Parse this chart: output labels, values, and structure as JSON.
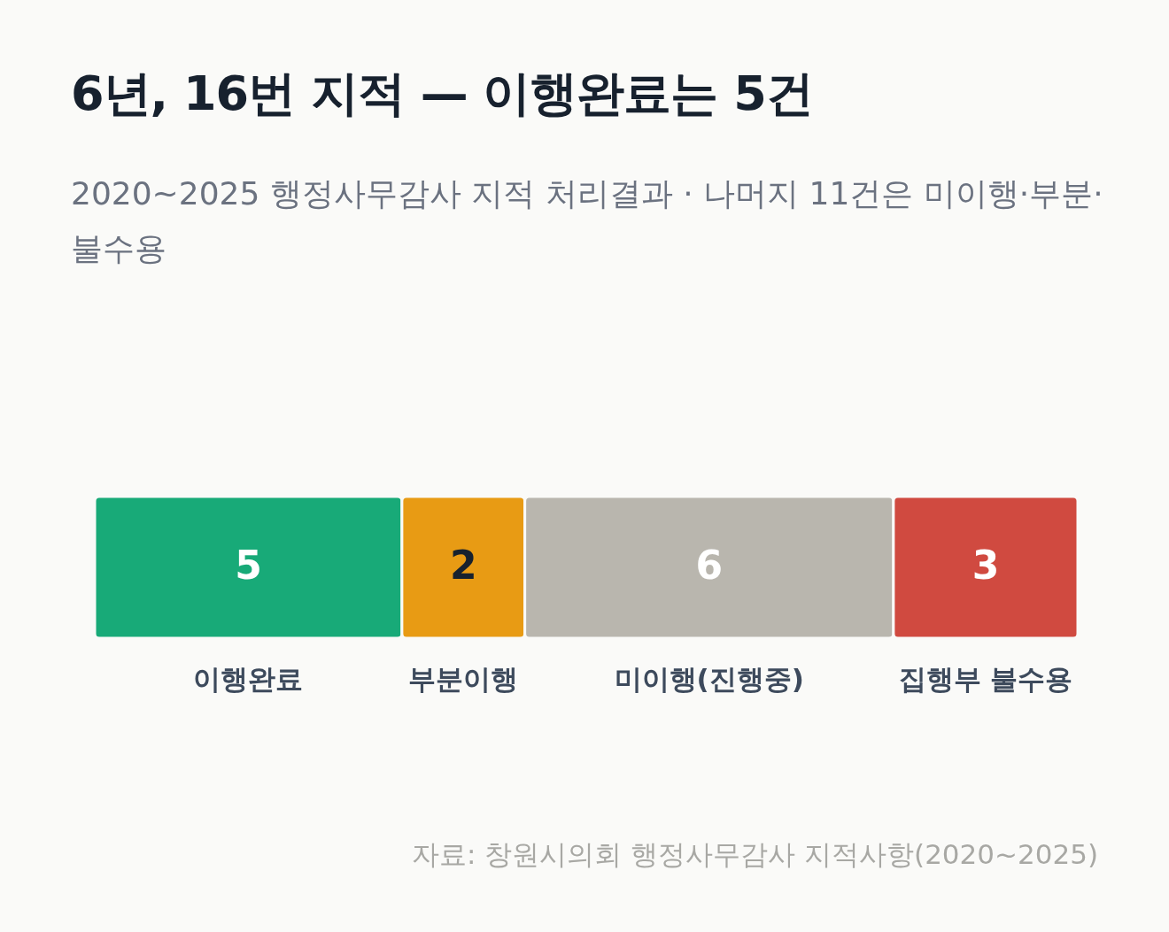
{
  "chart_data": {
    "type": "bar",
    "title": "6년, 16번 지적 — 이행완료는 5건",
    "subtitle": "2020~2025 행정사무감사 지적 처리결과 · 나머지 11건은 미이행·부분·불수용",
    "orientation": "horizontal",
    "stacked": true,
    "data_labels": true,
    "categories": [
      null
    ],
    "series": [
      {
        "name": "이행완료",
        "color": "#18aa78",
        "values": [
          5
        ]
      },
      {
        "name": "부분이행",
        "color": "#e89b14",
        "values": [
          2
        ]
      },
      {
        "name": "미이행(진행중)",
        "color": "#b9b6ae",
        "values": [
          6
        ]
      },
      {
        "name": "집행부 불수용",
        "color": "#d04a40",
        "values": [
          3
        ]
      }
    ],
    "annotations": [
      "자료: 창원시의회 행정사무감사 지적사항(2020~2025)"
    ]
  }
}
